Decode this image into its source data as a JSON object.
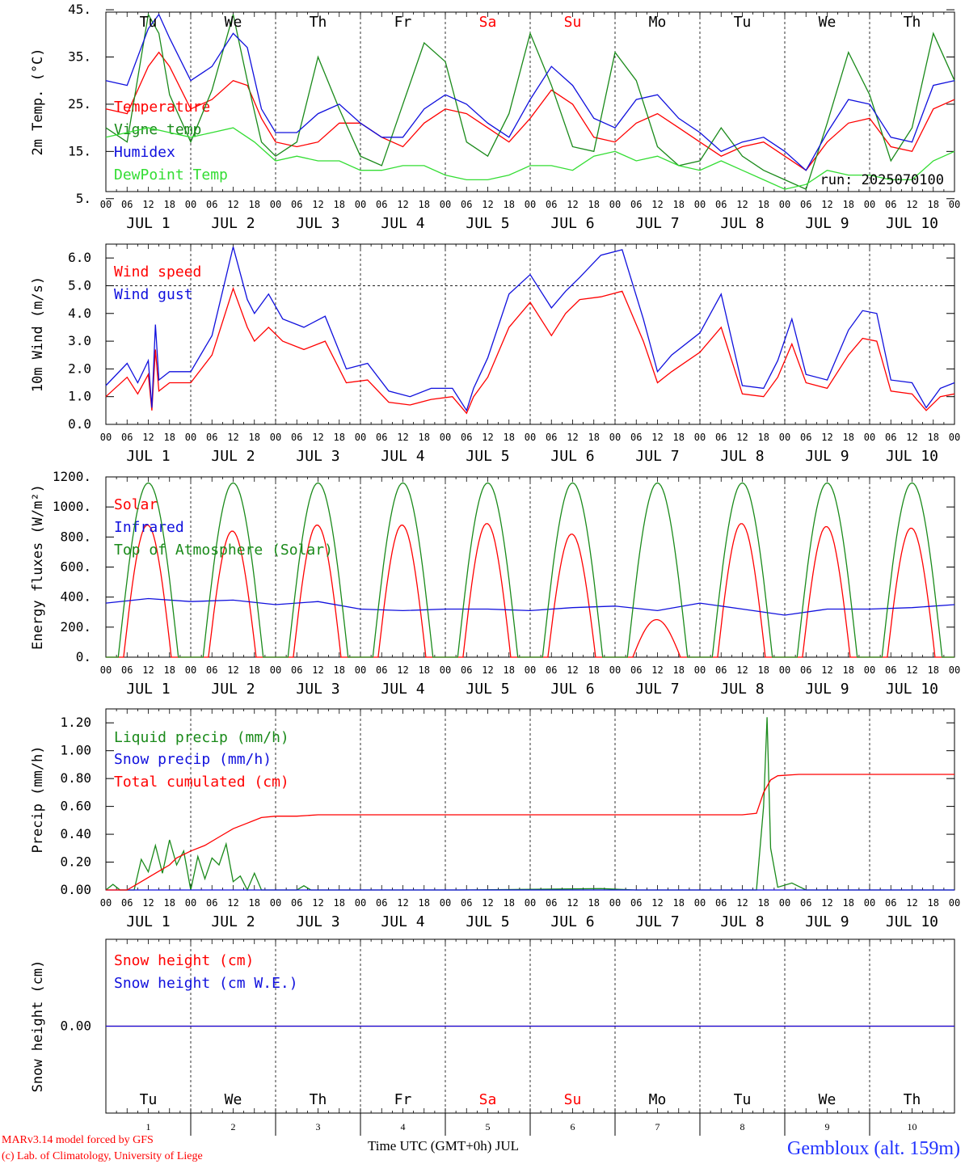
{
  "run_label": "run: 2025070100",
  "station": "Gembloux (alt. 159m)",
  "credit_line1": "MARv3.14 model forced by GFS",
  "credit_line2": "(c) Lab. of Climatology, University of Liege",
  "x_axis_title": "Time UTC (GMT+0h) JUL",
  "colors": {
    "red": "#ff0000",
    "blue": "#1010dd",
    "green": "#1a8a1a",
    "lightgreen": "#33dd33",
    "weekend": "#ff0000",
    "grey": "#555555"
  },
  "day_names": [
    "Tu",
    "We",
    "Th",
    "Fr",
    "Sa",
    "Su",
    "Mo",
    "Tu",
    "We",
    "Th"
  ],
  "weekend_days": [
    4,
    5
  ],
  "hour_ticks": [
    "00",
    "06",
    "12",
    "18"
  ],
  "date_labels": [
    "JUL  1",
    "JUL  2",
    "JUL  3",
    "JUL  4",
    "JUL  5",
    "JUL  6",
    "JUL  7",
    "JUL  8",
    "JUL  9",
    "JUL 10"
  ],
  "day_numbers": [
    "1",
    "2",
    "3",
    "4",
    "5",
    "6",
    "7",
    "8",
    "9",
    "10"
  ],
  "chart_data": [
    {
      "type": "line",
      "ylabel": "2m Temp. (°C)",
      "ylim": [
        5,
        45
      ],
      "yticks": [
        "5.",
        "15.",
        "25.",
        "35.",
        "45."
      ],
      "x_range_hours": [
        0,
        240
      ],
      "series": [
        {
          "name": "Temperature",
          "color": "#ff0000",
          "x": [
            0,
            6,
            12,
            15,
            18,
            24,
            30,
            36,
            40,
            44,
            48,
            54,
            60,
            66,
            72,
            78,
            84,
            90,
            96,
            102,
            108,
            114,
            120,
            126,
            132,
            138,
            144,
            150,
            156,
            162,
            168,
            174,
            180,
            186,
            192,
            198,
            204,
            210,
            216,
            222,
            228,
            234,
            240
          ],
          "y": [
            24,
            23,
            33,
            36,
            33,
            24,
            26,
            30,
            29,
            22,
            17,
            16,
            17,
            21,
            21,
            18,
            16,
            21,
            24,
            23,
            20,
            17,
            22,
            28,
            25,
            18,
            17,
            21,
            23,
            20,
            17,
            14,
            16,
            17,
            14,
            11,
            17,
            21,
            22,
            16,
            15,
            24,
            26
          ]
        },
        {
          "name": "Vigne temp",
          "color": "#1a8a1a",
          "x": [
            0,
            6,
            12,
            15,
            18,
            24,
            30,
            36,
            40,
            44,
            48,
            54,
            60,
            66,
            72,
            78,
            84,
            90,
            96,
            102,
            108,
            114,
            120,
            126,
            132,
            138,
            144,
            150,
            156,
            162,
            168,
            174,
            180,
            186,
            192,
            198,
            204,
            210,
            216,
            222,
            228,
            234,
            240
          ],
          "y": [
            20,
            17,
            44,
            40,
            27,
            17,
            28,
            44,
            30,
            17,
            14,
            17,
            35,
            24,
            14,
            12,
            25,
            38,
            34,
            17,
            14,
            23,
            40,
            29,
            16,
            15,
            36,
            30,
            16,
            12,
            13,
            20,
            14,
            11,
            9,
            7,
            21,
            36,
            27,
            13,
            20,
            40,
            30
          ]
        },
        {
          "name": "Humidex",
          "color": "#1010dd",
          "x": [
            0,
            6,
            12,
            15,
            18,
            24,
            30,
            36,
            40,
            44,
            48,
            54,
            60,
            66,
            72,
            78,
            84,
            90,
            96,
            102,
            108,
            114,
            120,
            126,
            132,
            138,
            144,
            150,
            156,
            162,
            168,
            174,
            180,
            186,
            192,
            198,
            204,
            210,
            216,
            222,
            228,
            234,
            240
          ],
          "y": [
            30,
            29,
            41,
            44,
            39,
            30,
            33,
            40,
            37,
            24,
            19,
            19,
            23,
            25,
            21,
            18,
            18,
            24,
            27,
            25,
            21,
            18,
            26,
            33,
            29,
            22,
            20,
            26,
            27,
            22,
            19,
            15,
            17,
            18,
            15,
            11,
            19,
            26,
            25,
            18,
            17,
            29,
            30
          ]
        },
        {
          "name": "DewPoint Temp",
          "color": "#33dd33",
          "x": [
            0,
            6,
            12,
            18,
            24,
            30,
            36,
            42,
            48,
            54,
            60,
            66,
            72,
            78,
            84,
            90,
            96,
            102,
            108,
            114,
            120,
            126,
            132,
            138,
            144,
            150,
            156,
            162,
            168,
            174,
            180,
            186,
            192,
            198,
            204,
            210,
            216,
            222,
            228,
            234,
            240
          ],
          "y": [
            18,
            19,
            20,
            19,
            18,
            19,
            20,
            17,
            13,
            14,
            13,
            13,
            11,
            11,
            12,
            12,
            10,
            9,
            9,
            10,
            12,
            12,
            11,
            14,
            15,
            13,
            14,
            12,
            11,
            13,
            11,
            9,
            7,
            8,
            11,
            10,
            10,
            9,
            9,
            13,
            15
          ]
        }
      ]
    },
    {
      "type": "line",
      "ylabel": "10m Wind (m/s)",
      "ylim": [
        0,
        6.5
      ],
      "yticks": [
        "0.0",
        "1.0",
        "2.0",
        "3.0",
        "4.0",
        "5.0",
        "6.0"
      ],
      "dashed_reference_y": 5.0,
      "x_range_hours": [
        0,
        240
      ],
      "series": [
        {
          "name": "Wind speed",
          "color": "#ff0000",
          "x": [
            0,
            6,
            9,
            12,
            13,
            14,
            15,
            18,
            24,
            30,
            36,
            40,
            42,
            46,
            50,
            56,
            62,
            68,
            74,
            80,
            86,
            92,
            98,
            102,
            104,
            108,
            114,
            120,
            126,
            130,
            134,
            140,
            146,
            152,
            156,
            160,
            168,
            174,
            180,
            186,
            190,
            194,
            198,
            204,
            210,
            214,
            218,
            222,
            228,
            232,
            236,
            240
          ],
          "y": [
            1.0,
            1.7,
            1.1,
            1.8,
            0.5,
            2.7,
            1.2,
            1.5,
            1.5,
            2.5,
            4.9,
            3.5,
            3.0,
            3.5,
            3.0,
            2.7,
            3.0,
            1.5,
            1.6,
            0.8,
            0.7,
            0.9,
            1.0,
            0.4,
            1.0,
            1.7,
            3.5,
            4.4,
            3.2,
            4.0,
            4.5,
            4.6,
            4.8,
            3.0,
            1.5,
            1.9,
            2.6,
            3.5,
            1.1,
            1.0,
            1.7,
            2.9,
            1.5,
            1.3,
            2.5,
            3.1,
            3.0,
            1.2,
            1.1,
            0.5,
            1.0,
            1.1
          ]
        },
        {
          "name": "Wind gust",
          "color": "#1010dd",
          "x": [
            0,
            6,
            9,
            12,
            13,
            14,
            15,
            18,
            24,
            30,
            36,
            40,
            42,
            46,
            50,
            56,
            62,
            68,
            74,
            80,
            86,
            92,
            98,
            102,
            104,
            108,
            114,
            120,
            126,
            130,
            134,
            140,
            146,
            152,
            156,
            160,
            168,
            174,
            180,
            186,
            190,
            194,
            198,
            204,
            210,
            214,
            218,
            222,
            228,
            232,
            236,
            240
          ],
          "y": [
            1.4,
            2.2,
            1.5,
            2.3,
            0.6,
            3.6,
            1.6,
            1.9,
            1.9,
            3.2,
            6.4,
            4.5,
            4.0,
            4.7,
            3.8,
            3.5,
            3.9,
            2.0,
            2.2,
            1.2,
            1.0,
            1.3,
            1.3,
            0.5,
            1.3,
            2.4,
            4.7,
            5.4,
            4.2,
            4.8,
            5.3,
            6.1,
            6.3,
            3.8,
            1.9,
            2.5,
            3.3,
            4.7,
            1.4,
            1.3,
            2.3,
            3.8,
            1.8,
            1.6,
            3.4,
            4.1,
            4.0,
            1.6,
            1.5,
            0.6,
            1.3,
            1.5
          ]
        }
      ]
    },
    {
      "type": "line",
      "ylabel": "Energy fluxes (W/m²)",
      "ylim": [
        0,
        1200
      ],
      "yticks": [
        "0.",
        "200.",
        "400.",
        "600.",
        "800.",
        "1000.",
        "1200."
      ],
      "x_range_hours": [
        0,
        240
      ],
      "series": [
        {
          "name": "Solar",
          "color": "#ff0000",
          "daily_peak_values": [
            880,
            840,
            880,
            880,
            890,
            820,
            250,
            890,
            870,
            860
          ]
        },
        {
          "name": "Infrared",
          "color": "#1010dd",
          "x": [
            0,
            12,
            24,
            36,
            48,
            60,
            72,
            84,
            96,
            108,
            120,
            132,
            144,
            156,
            168,
            180,
            192,
            204,
            216,
            228,
            240
          ],
          "y": [
            360,
            390,
            370,
            380,
            350,
            370,
            320,
            310,
            320,
            320,
            310,
            330,
            340,
            310,
            360,
            320,
            280,
            320,
            320,
            330,
            350
          ]
        },
        {
          "name": "Top of Atmosphere (Solar)",
          "color": "#1a8a1a",
          "daily_peak_values": [
            1160,
            1160,
            1160,
            1160,
            1160,
            1160,
            1160,
            1160,
            1160,
            1160
          ]
        }
      ]
    },
    {
      "type": "line",
      "ylabel": "Precip (mm/h)",
      "ylim": [
        0,
        1.3
      ],
      "yticks": [
        "0.00",
        "0.20",
        "0.40",
        "0.60",
        "0.80",
        "1.00",
        "1.20"
      ],
      "x_range_hours": [
        0,
        240
      ],
      "series": [
        {
          "name": "Liquid precip (mm/h)",
          "color": "#1a8a1a",
          "x": [
            0,
            2,
            4,
            8,
            10,
            12,
            14,
            16,
            18,
            20,
            22,
            24,
            26,
            28,
            30,
            32,
            34,
            36,
            38,
            40,
            42,
            44,
            46,
            48,
            54,
            56,
            58,
            60,
            80,
            90,
            100,
            140,
            150,
            160,
            184,
            186,
            187,
            188,
            190,
            194,
            198,
            204,
            210,
            240
          ],
          "y": [
            0,
            0.04,
            0,
            0,
            0.22,
            0.13,
            0.32,
            0.12,
            0.36,
            0.18,
            0.28,
            0.0,
            0.24,
            0.08,
            0.23,
            0.18,
            0.33,
            0.06,
            0.1,
            0.0,
            0.12,
            0,
            0.0,
            0,
            0.0,
            0.03,
            0,
            0,
            0,
            0,
            0,
            0.01,
            0,
            0,
            0,
            0.6,
            1.24,
            0.3,
            0.02,
            0.05,
            0,
            0,
            0,
            0
          ]
        },
        {
          "name": "Snow precip (mm/h)",
          "color": "#1010dd",
          "x": [
            0,
            240
          ],
          "y": [
            0,
            0
          ]
        },
        {
          "name": "Total cumulated (cm)",
          "color": "#ff0000",
          "x": [
            0,
            6,
            10,
            14,
            18,
            20,
            24,
            28,
            32,
            36,
            40,
            44,
            48,
            54,
            60,
            80,
            100,
            120,
            140,
            160,
            180,
            184,
            186,
            188,
            190,
            196,
            210,
            240
          ],
          "y": [
            0,
            0,
            0.06,
            0.12,
            0.18,
            0.23,
            0.28,
            0.32,
            0.38,
            0.44,
            0.48,
            0.52,
            0.53,
            0.53,
            0.54,
            0.54,
            0.54,
            0.54,
            0.54,
            0.54,
            0.54,
            0.55,
            0.7,
            0.79,
            0.82,
            0.83,
            0.83,
            0.83
          ]
        }
      ]
    },
    {
      "type": "line",
      "ylabel": "Snow height (cm)",
      "yticks": [
        "0.00"
      ],
      "x_range_hours": [
        0,
        240
      ],
      "series": [
        {
          "name": "Snow height (cm)",
          "color": "#ff0000",
          "x": [
            0,
            240
          ],
          "y": [
            0,
            0
          ]
        },
        {
          "name": "Snow height (cm W.E.)",
          "color": "#1010dd",
          "x": [
            0,
            240
          ],
          "y": [
            0,
            0
          ]
        }
      ]
    }
  ]
}
